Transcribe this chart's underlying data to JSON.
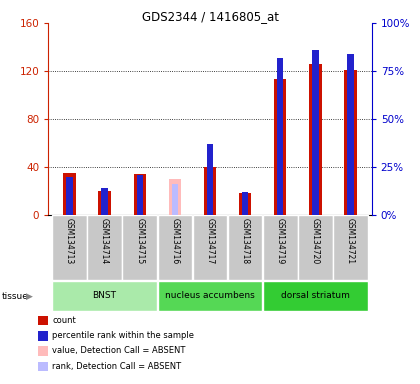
{
  "title": "GDS2344 / 1416805_at",
  "samples": [
    "GSM134713",
    "GSM134714",
    "GSM134715",
    "GSM134716",
    "GSM134717",
    "GSM134718",
    "GSM134719",
    "GSM134720",
    "GSM134721"
  ],
  "count_values": [
    35,
    20,
    34,
    0,
    40,
    18,
    113,
    126,
    121
  ],
  "rank_values": [
    20,
    14,
    21,
    0,
    37,
    12,
    82,
    86,
    84
  ],
  "absent_count_values": [
    0,
    0,
    0,
    30,
    0,
    0,
    0,
    0,
    0
  ],
  "absent_rank_values": [
    0,
    0,
    0,
    16,
    0,
    0,
    0,
    0,
    0
  ],
  "absent_flags": [
    false,
    false,
    false,
    true,
    false,
    false,
    false,
    false,
    false
  ],
  "tissues": [
    {
      "label": "BNST",
      "start": 0,
      "end": 3,
      "color": "#aaeaaa"
    },
    {
      "label": "nucleus accumbens",
      "start": 3,
      "end": 6,
      "color": "#55d855"
    },
    {
      "label": "dorsal striatum",
      "start": 6,
      "end": 9,
      "color": "#33cc33"
    }
  ],
  "ylim_left": [
    0,
    160
  ],
  "ylim_right": [
    0,
    100
  ],
  "yticks_left": [
    0,
    40,
    80,
    120,
    160
  ],
  "ytick_labels_left": [
    "0",
    "40",
    "80",
    "120",
    "160"
  ],
  "yticks_right": [
    0,
    25,
    50,
    75,
    100
  ],
  "ytick_labels_right": [
    "0%",
    "25%",
    "50%",
    "75%",
    "100%"
  ],
  "color_count": "#cc1100",
  "color_rank": "#2222cc",
  "color_absent_count": "#ffbbbb",
  "color_absent_rank": "#bbbbff",
  "left_axis_color": "#cc2200",
  "right_axis_color": "#0000cc",
  "tissue_label": "tissue",
  "legend": [
    {
      "color": "#cc1100",
      "label": "count"
    },
    {
      "color": "#2222cc",
      "label": "percentile rank within the sample"
    },
    {
      "color": "#ffbbbb",
      "label": "value, Detection Call = ABSENT"
    },
    {
      "color": "#bbbbff",
      "label": "rank, Detection Call = ABSENT"
    }
  ],
  "bar_width": 0.35,
  "rank_bar_width": 0.18,
  "grid_color": "#000000",
  "plot_bg": "#ffffff",
  "sample_bg": "#c8c8c8"
}
